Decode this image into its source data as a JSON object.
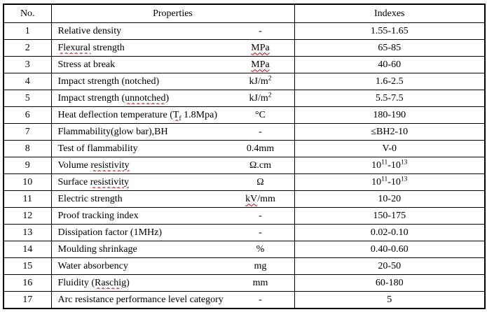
{
  "colors": {
    "border": "#000000",
    "text": "#000000",
    "spellcheck_squiggle": "#d10000",
    "background": "#ffffff"
  },
  "header": {
    "no": "No.",
    "properties": "Properties",
    "indexes": "Indexes"
  },
  "rows": [
    {
      "no": "1",
      "property": [
        {
          "t": "Relative density"
        }
      ],
      "unit": [
        {
          "t": "-"
        }
      ],
      "index": [
        {
          "t": "1.55-1.65"
        }
      ]
    },
    {
      "no": "2",
      "property": [
        {
          "t": "Flexural",
          "sq": true
        },
        {
          "t": " strength"
        }
      ],
      "unit": [
        {
          "t": "MPa",
          "sq": true
        }
      ],
      "index": [
        {
          "t": "65-85"
        }
      ]
    },
    {
      "no": "3",
      "property": [
        {
          "t": "Stress at break"
        }
      ],
      "unit": [
        {
          "t": "MPa",
          "sq": true
        }
      ],
      "index": [
        {
          "t": "40-60"
        }
      ]
    },
    {
      "no": "4",
      "property": [
        {
          "t": "Impact strength (notched)"
        }
      ],
      "unit": [
        {
          "t": "kJ/m"
        },
        {
          "t": "2",
          "sup": true
        }
      ],
      "index": [
        {
          "t": "1.6-2.5"
        }
      ]
    },
    {
      "no": "5",
      "property": [
        {
          "t": "Impact strength ("
        },
        {
          "t": "unnotched",
          "sq": true
        },
        {
          "t": ")"
        }
      ],
      "unit": [
        {
          "t": "kJ/m"
        },
        {
          "t": "2",
          "sup": true
        }
      ],
      "index": [
        {
          "t": "5.5-7.5"
        }
      ]
    },
    {
      "no": "6",
      "property": [
        {
          "t": "Heat deflection temperature ("
        },
        {
          "t": "T",
          "sq": true
        },
        {
          "t": "f",
          "sub": true,
          "sq": true
        },
        {
          "t": " 1.8Mpa)"
        }
      ],
      "unit": [
        {
          "t": "°C"
        }
      ],
      "index": [
        {
          "t": "180-190"
        }
      ]
    },
    {
      "no": "7",
      "property": [
        {
          "t": "Flammability(glow bar)"
        },
        {
          "t": ",",
          "sq": true
        },
        {
          "t": "BH"
        }
      ],
      "unit": [
        {
          "t": "-"
        }
      ],
      "index": [
        {
          "t": "≤BH2-10"
        }
      ]
    },
    {
      "no": "8",
      "property": [
        {
          "t": "Test of flammability"
        }
      ],
      "unit": [
        {
          "t": "0.4mm"
        }
      ],
      "index": [
        {
          "t": "V-0"
        }
      ]
    },
    {
      "no": "9",
      "property": [
        {
          "t": "Volume "
        },
        {
          "t": "resistivity",
          "sq": true
        }
      ],
      "unit": [
        {
          "t": "Ω.cm"
        }
      ],
      "index": [
        {
          "t": "10"
        },
        {
          "t": "11",
          "sup": true
        },
        {
          "t": "-10"
        },
        {
          "t": "13",
          "sup": true
        }
      ]
    },
    {
      "no": "10",
      "property": [
        {
          "t": "Surface "
        },
        {
          "t": "resistivity",
          "sq": true
        }
      ],
      "unit": [
        {
          "t": "Ω"
        }
      ],
      "index": [
        {
          "t": "10"
        },
        {
          "t": "11",
          "sup": true
        },
        {
          "t": "-10"
        },
        {
          "t": "13",
          "sup": true
        }
      ]
    },
    {
      "no": "11",
      "property": [
        {
          "t": "Electric strength"
        }
      ],
      "unit": [
        {
          "t": "kV",
          "sq": true
        },
        {
          "t": "/mm"
        }
      ],
      "index": [
        {
          "t": "10-20"
        }
      ]
    },
    {
      "no": "12",
      "property": [
        {
          "t": "Proof tracking index"
        }
      ],
      "unit": [
        {
          "t": "-"
        }
      ],
      "index": [
        {
          "t": "150-175"
        }
      ]
    },
    {
      "no": "13",
      "property": [
        {
          "t": "Dissipation factor (1MHz)"
        }
      ],
      "unit": [
        {
          "t": "-"
        }
      ],
      "index": [
        {
          "t": "0.02-0.10"
        }
      ]
    },
    {
      "no": "14",
      "property": [
        {
          "t": "Moulding shrinkage"
        }
      ],
      "unit": [
        {
          "t": "%"
        }
      ],
      "index": [
        {
          "t": "0.40-0.60"
        }
      ]
    },
    {
      "no": "15",
      "property": [
        {
          "t": "Water absorbency"
        }
      ],
      "unit": [
        {
          "t": "mg"
        }
      ],
      "index": [
        {
          "t": "20-50"
        }
      ]
    },
    {
      "no": "16",
      "property": [
        {
          "t": "Fluidity ("
        },
        {
          "t": "Raschig",
          "sq": true
        },
        {
          "t": ")"
        }
      ],
      "unit": [
        {
          "t": "mm"
        }
      ],
      "index": [
        {
          "t": "60-180"
        }
      ]
    },
    {
      "no": "17",
      "property": [
        {
          "t": "Arc resistance performance level category"
        }
      ],
      "unit": [
        {
          "t": "-"
        }
      ],
      "index": [
        {
          "t": "5"
        }
      ]
    }
  ]
}
